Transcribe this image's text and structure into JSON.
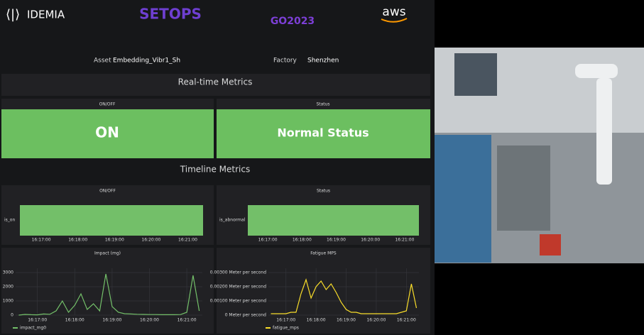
{
  "header": {
    "logos": [
      "IDEMIA",
      "SETOPS",
      "GO2023",
      "aws"
    ]
  },
  "asset": {
    "label": "Asset",
    "value": "Embedding_Vibr1_Sh"
  },
  "factory": {
    "label": "Factory",
    "value": "Shenzhen"
  },
  "sections": [
    "Real-time Metrics",
    "Timeline Metrics"
  ],
  "stat_panels": [
    {
      "title": "ON/OFF",
      "value": "ON"
    },
    {
      "title": "Status",
      "value": "Normal Status"
    }
  ],
  "timeline_panels": [
    {
      "title": "ON/OFF",
      "row_label": "is_on",
      "xlim": [
        "16:16:25",
        "16:21:25"
      ],
      "xticks": [
        "16:17:00",
        "16:18:00",
        "16:19:00",
        "16:20:00",
        "16:21:00"
      ],
      "color": "#73bf69"
    },
    {
      "title": "Status",
      "row_label": "is_abnormal",
      "xlim": [
        "16:16:25",
        "16:21:25"
      ],
      "xticks": [
        "16:17:00",
        "16:18:00",
        "16:19:00",
        "16:20:00",
        "16:21:00"
      ],
      "color": "#73bf69"
    }
  ],
  "chart_data": [
    {
      "type": "line",
      "title": "Impact (mg)",
      "x": [
        "16:16:30",
        "16:16:40",
        "16:16:50",
        "16:17:00",
        "16:17:10",
        "16:17:20",
        "16:17:30",
        "16:17:40",
        "16:17:50",
        "16:18:00",
        "16:18:10",
        "16:18:20",
        "16:18:30",
        "16:18:40",
        "16:18:50",
        "16:19:00",
        "16:19:10",
        "16:19:20",
        "16:19:30",
        "16:19:40",
        "16:19:50",
        "16:20:00",
        "16:20:10",
        "16:20:20",
        "16:20:30",
        "16:20:40",
        "16:20:50",
        "16:21:00",
        "16:21:10",
        "16:21:20"
      ],
      "series": [
        {
          "name": "impact_mg0",
          "color": "#73bf69",
          "values": [
            0,
            50,
            30,
            20,
            80,
            60,
            300,
            1000,
            200,
            700,
            1500,
            400,
            800,
            300,
            2900,
            600,
            200,
            100,
            80,
            60,
            50,
            40,
            40,
            30,
            30,
            30,
            40,
            200,
            2800,
            300
          ]
        }
      ],
      "xlim": [
        "16:16:25",
        "16:21:25"
      ],
      "xticks": [
        "16:17:00",
        "16:18:00",
        "16:19:00",
        "16:20:00",
        "16:21:00"
      ],
      "ylim": [
        0,
        3300
      ],
      "yticks": [
        0,
        1000,
        2000,
        3000
      ],
      "grid": true
    },
    {
      "type": "line",
      "title": "Fatigue MPS",
      "x": [
        "16:16:30",
        "16:16:40",
        "16:16:50",
        "16:17:00",
        "16:17:10",
        "16:17:20",
        "16:17:30",
        "16:17:40",
        "16:17:50",
        "16:18:00",
        "16:18:10",
        "16:18:20",
        "16:18:30",
        "16:18:40",
        "16:18:50",
        "16:19:00",
        "16:19:10",
        "16:19:20",
        "16:19:30",
        "16:19:40",
        "16:19:50",
        "16:20:00",
        "16:20:10",
        "16:20:20",
        "16:20:30",
        "16:20:40",
        "16:20:50",
        "16:21:00",
        "16:21:10",
        "16:21:20"
      ],
      "series": [
        {
          "name": "fatigue_mps",
          "color": "#fade2a",
          "values": [
            0.0001,
            0.0001,
            0.0001,
            0.0001,
            0.0002,
            0.0002,
            0.0015,
            0.0025,
            0.0012,
            0.002,
            0.0024,
            0.0018,
            0.0022,
            0.0016,
            0.0009,
            0.0004,
            0.0002,
            0.0002,
            0.0001,
            0.0001,
            0.0001,
            0.0001,
            0.0001,
            0.0001,
            0.0001,
            0.0001,
            0.0002,
            0.0003,
            0.0022,
            0.0005
          ]
        }
      ],
      "xlim": [
        "16:16:25",
        "16:21:25"
      ],
      "xticks": [
        "16:17:00",
        "16:18:00",
        "16:19:00",
        "16:20:00",
        "16:21:00"
      ],
      "ylim": [
        0,
        0.0033
      ],
      "yticks": [
        {
          "value": 0,
          "label": "0 Meter per second"
        },
        {
          "value": 0.001,
          "label": "0.00100 Meter per second"
        },
        {
          "value": 0.002,
          "label": "0.00200 Meter per second"
        },
        {
          "value": 0.003,
          "label": "0.00300 Meter per second"
        }
      ],
      "grid": true
    }
  ]
}
